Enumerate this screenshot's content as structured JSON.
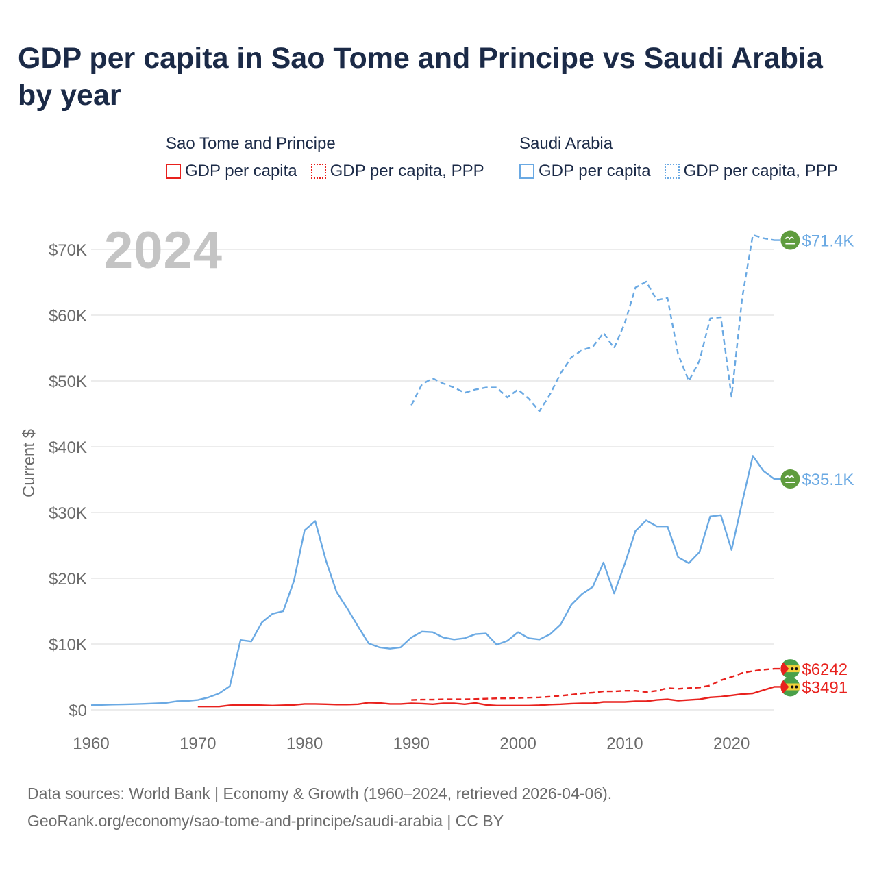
{
  "title": "GDP per capita in Sao Tome and Principe vs Saudi Arabia by year",
  "year_label": "2024",
  "legend": {
    "stp": {
      "name": "Sao Tome and Principe",
      "gdp": "GDP per capita",
      "ppp": "GDP per capita, PPP"
    },
    "sau": {
      "name": "Saudi Arabia",
      "gdp": "GDP per capita",
      "ppp": "GDP per capita, PPP"
    }
  },
  "colors": {
    "stp": "#e8211d",
    "sau": "#6aa9e3",
    "grid": "#e6e6e6",
    "axis_text": "#6b6b6b"
  },
  "footer": {
    "line1": "Data sources: World Bank | Economy & Growth (1960–2024, retrieved 2026-04-06).",
    "line2": "GeoRank.org/economy/sao-tome-and-principe/saudi-arabia | CC BY"
  },
  "chart_data": {
    "type": "line",
    "title": "GDP per capita in Sao Tome and Principe vs Saudi Arabia by year",
    "xlabel": "",
    "ylabel": "Current $",
    "xlim": [
      1960,
      2024
    ],
    "ylim": [
      0,
      75000
    ],
    "xticks": [
      1960,
      1970,
      1980,
      1990,
      2000,
      2010,
      2020
    ],
    "xtick_labels": [
      "1960",
      "1970",
      "1980",
      "1990",
      "2000",
      "2010",
      "2020"
    ],
    "yticks": [
      0,
      10000,
      20000,
      30000,
      40000,
      50000,
      60000,
      70000
    ],
    "ytick_labels": [
      "$0",
      "$10K",
      "$20K",
      "$30K",
      "$40K",
      "$50K",
      "$60K",
      "$70K"
    ],
    "grid": true,
    "series": [
      {
        "name": "Saudi Arabia GDP per capita",
        "country": "sau",
        "style": "solid",
        "x": [
          1960,
          1961,
          1962,
          1963,
          1964,
          1965,
          1966,
          1967,
          1968,
          1969,
          1970,
          1971,
          1972,
          1973,
          1974,
          1975,
          1976,
          1977,
          1978,
          1979,
          1980,
          1981,
          1982,
          1983,
          1984,
          1985,
          1986,
          1987,
          1988,
          1989,
          1990,
          1991,
          1992,
          1993,
          1994,
          1995,
          1996,
          1997,
          1998,
          1999,
          2000,
          2001,
          2002,
          2003,
          2004,
          2005,
          2006,
          2007,
          2008,
          2009,
          2010,
          2011,
          2012,
          2013,
          2014,
          2015,
          2016,
          2017,
          2018,
          2019,
          2020,
          2021,
          2022,
          2023,
          2024
        ],
        "values": [
          700,
          750,
          800,
          820,
          860,
          920,
          980,
          1050,
          1300,
          1350,
          1500,
          1900,
          2500,
          3600,
          10600,
          10400,
          13300,
          14600,
          15000,
          19600,
          27300,
          28700,
          22700,
          17900,
          15400,
          12700,
          10100,
          9500,
          9300,
          9500,
          11000,
          11900,
          11800,
          11000,
          10700,
          10900,
          11500,
          11600,
          9900,
          10500,
          11800,
          10900,
          10700,
          11500,
          13000,
          16000,
          17600,
          18700,
          22400,
          17700,
          22200,
          27200,
          28800,
          27900,
          27900,
          23200,
          22300,
          24000,
          29400,
          29600,
          24300,
          31600,
          38600,
          36300,
          35100
        ],
        "end_label": "$35.1K"
      },
      {
        "name": "Saudi Arabia GDP per capita, PPP",
        "country": "sau",
        "style": "dashed",
        "x": [
          1990,
          1991,
          1992,
          1993,
          1994,
          1995,
          1996,
          1997,
          1998,
          1999,
          2000,
          2001,
          2002,
          2003,
          2004,
          2005,
          2006,
          2007,
          2008,
          2009,
          2010,
          2011,
          2012,
          2013,
          2014,
          2015,
          2016,
          2017,
          2018,
          2019,
          2020,
          2021,
          2022,
          2023,
          2024
        ],
        "values": [
          46300,
          49500,
          50400,
          49600,
          49000,
          48200,
          48700,
          49000,
          49000,
          47500,
          48700,
          47300,
          45400,
          48000,
          51200,
          53600,
          54700,
          55200,
          57300,
          55000,
          58800,
          64200,
          65100,
          62300,
          62600,
          54000,
          50000,
          53100,
          59500,
          59700,
          47600,
          62700,
          72200,
          71700,
          71400
        ],
        "end_label": "$71.4K"
      },
      {
        "name": "Sao Tome and Principe GDP per capita",
        "country": "stp",
        "style": "solid",
        "x": [
          1970,
          1971,
          1972,
          1973,
          1974,
          1975,
          1976,
          1977,
          1978,
          1979,
          1980,
          1981,
          1982,
          1983,
          1984,
          1985,
          1986,
          1987,
          1988,
          1989,
          1990,
          1991,
          1992,
          1993,
          1994,
          1995,
          1996,
          1997,
          1998,
          1999,
          2000,
          2001,
          2002,
          2003,
          2004,
          2005,
          2006,
          2007,
          2008,
          2009,
          2010,
          2011,
          2012,
          2013,
          2014,
          2015,
          2016,
          2017,
          2018,
          2019,
          2020,
          2021,
          2022,
          2023,
          2024
        ],
        "values": [
          500,
          500,
          500,
          700,
          750,
          750,
          700,
          650,
          700,
          750,
          900,
          900,
          850,
          800,
          800,
          850,
          1100,
          1050,
          900,
          900,
          1000,
          950,
          850,
          1000,
          1000,
          850,
          1050,
          750,
          650,
          650,
          650,
          650,
          700,
          800,
          850,
          950,
          1000,
          1000,
          1200,
          1200,
          1200,
          1300,
          1300,
          1500,
          1600,
          1400,
          1500,
          1600,
          1900,
          2000,
          2200,
          2400,
          2500,
          3000,
          3491
        ],
        "end_label": "$3491"
      },
      {
        "name": "Sao Tome and Principe GDP per capita, PPP",
        "country": "stp",
        "style": "dashed",
        "x": [
          1990,
          1991,
          1992,
          1993,
          1994,
          1995,
          1996,
          1997,
          1998,
          1999,
          2000,
          2001,
          2002,
          2003,
          2004,
          2005,
          2006,
          2007,
          2008,
          2009,
          2010,
          2011,
          2012,
          2013,
          2014,
          2015,
          2016,
          2017,
          2018,
          2019,
          2020,
          2021,
          2022,
          2023,
          2024
        ],
        "values": [
          1500,
          1550,
          1550,
          1600,
          1600,
          1600,
          1650,
          1700,
          1750,
          1750,
          1800,
          1850,
          1900,
          2000,
          2150,
          2300,
          2500,
          2600,
          2800,
          2800,
          2900,
          2900,
          2700,
          2900,
          3300,
          3200,
          3300,
          3400,
          3700,
          4500,
          5000,
          5600,
          5900,
          6100,
          6242
        ],
        "end_label": "$6242"
      }
    ]
  }
}
